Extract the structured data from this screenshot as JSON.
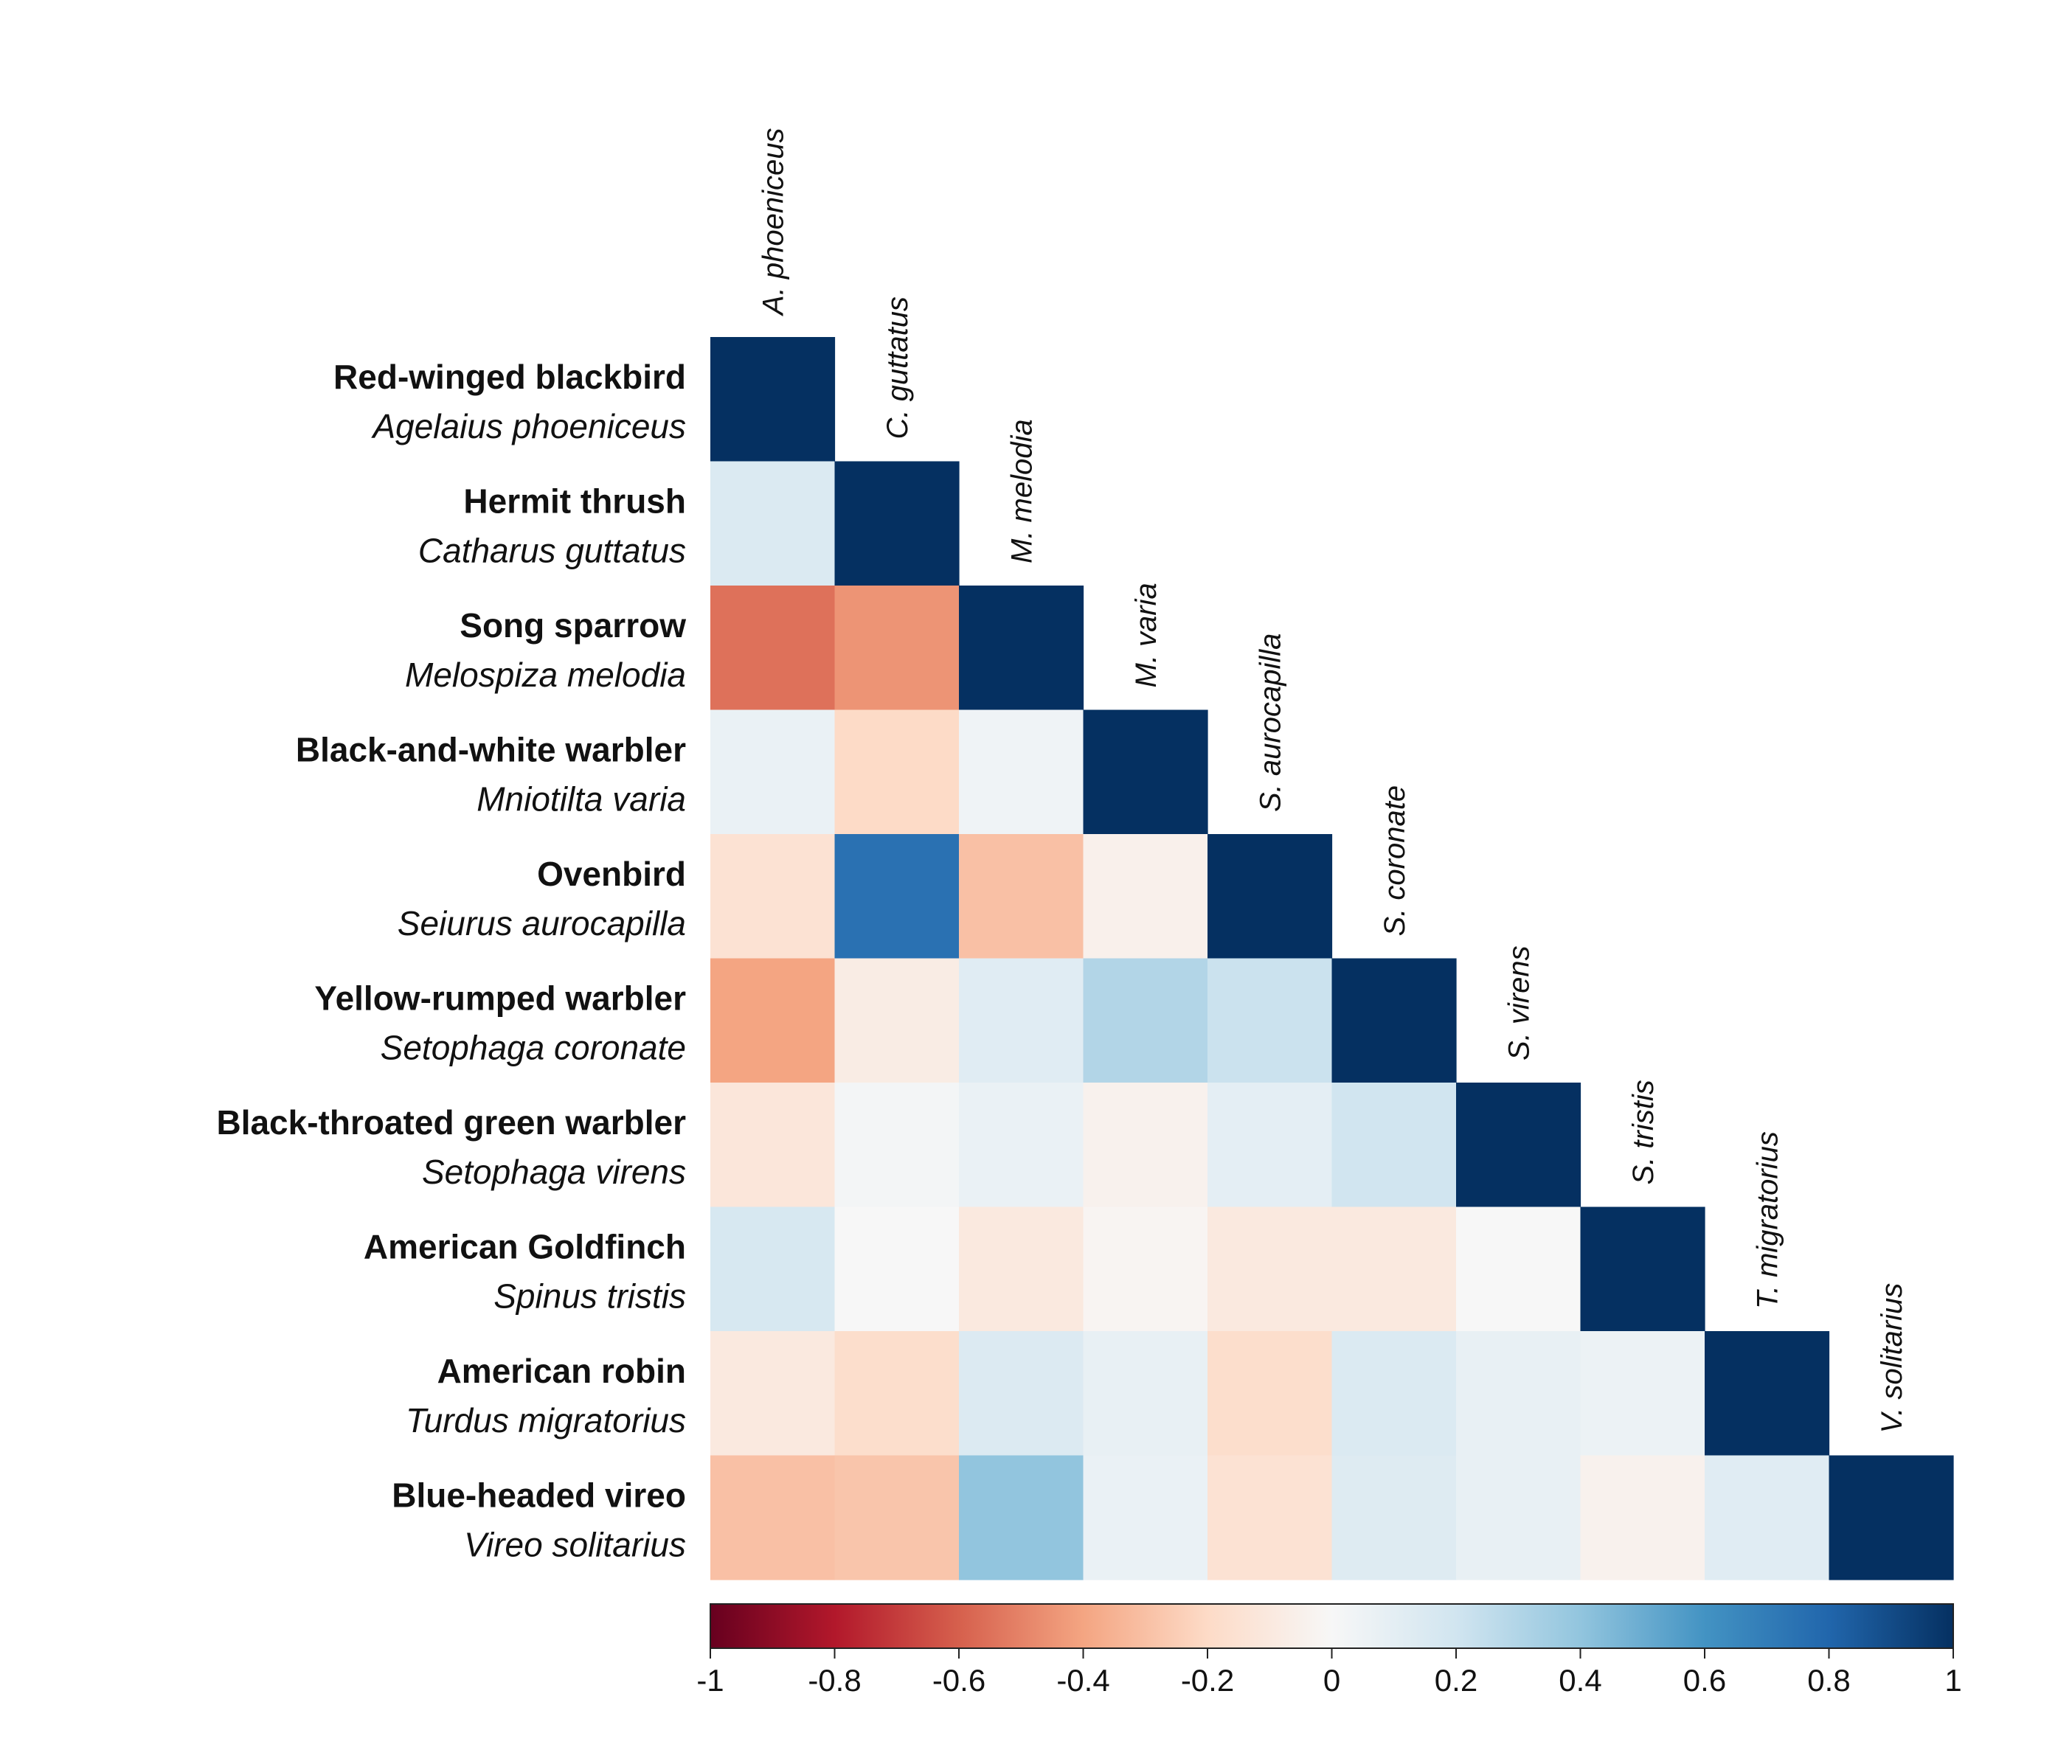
{
  "chart_data": {
    "type": "heatmap",
    "title": "",
    "rows": [
      {
        "common": "Red-winged blackbird",
        "scientific": "Agelaius phoeniceus"
      },
      {
        "common": "Hermit thrush",
        "scientific": "Catharus guttatus"
      },
      {
        "common": "Song sparrow",
        "scientific": "Melospiza melodia"
      },
      {
        "common": "Black-and-white warbler",
        "scientific": "Mniotilta varia"
      },
      {
        "common": "Ovenbird",
        "scientific": "Seiurus aurocapilla"
      },
      {
        "common": "Yellow-rumped warbler",
        "scientific": "Setophaga coronate"
      },
      {
        "common": "Black-throated green warbler",
        "scientific": "Setophaga virens"
      },
      {
        "common": "American Goldfinch",
        "scientific": "Spinus tristis"
      },
      {
        "common": "American robin",
        "scientific": "Turdus migratorius"
      },
      {
        "common": "Blue-headed vireo",
        "scientific": "Vireo solitarius"
      }
    ],
    "columns": [
      "A. phoeniceus",
      "C. guttatus",
      "M. melodia",
      "M. varia",
      "S. aurocapilla",
      "S. coronate",
      "S. virens",
      "S. tristis",
      "T. migratorius",
      "V. solitarius"
    ],
    "values": [
      [
        1
      ],
      [
        0.15,
        1
      ],
      [
        -0.55,
        -0.45,
        1
      ],
      [
        0.07,
        -0.2,
        0.04,
        1
      ],
      [
        -0.15,
        0.75,
        -0.3,
        -0.05,
        1
      ],
      [
        -0.4,
        -0.08,
        0.12,
        0.3,
        0.22,
        1
      ],
      [
        -0.12,
        0.02,
        0.07,
        -0.04,
        0.1,
        0.2,
        1
      ],
      [
        0.17,
        0.0,
        -0.1,
        -0.02,
        -0.1,
        -0.1,
        0.0,
        1
      ],
      [
        -0.1,
        -0.18,
        0.14,
        0.08,
        -0.18,
        0.15,
        0.08,
        0.06,
        1
      ],
      [
        -0.3,
        -0.28,
        0.4,
        0.07,
        -0.15,
        0.13,
        0.08,
        -0.04,
        0.12,
        1
      ]
    ],
    "colorbar": {
      "range": [
        -1,
        1
      ],
      "ticks": [
        "-1",
        "-0.8",
        "-0.6",
        "-0.4",
        "-0.2",
        "0",
        "0.2",
        "0.4",
        "0.6",
        "0.8",
        "1"
      ],
      "scale": "RdBu",
      "orientation": "horizontal",
      "position": "bottom"
    },
    "colors": {
      "negative_end": "#67001f",
      "neutral": "#f7f7f7",
      "positive_end": "#053061"
    }
  }
}
